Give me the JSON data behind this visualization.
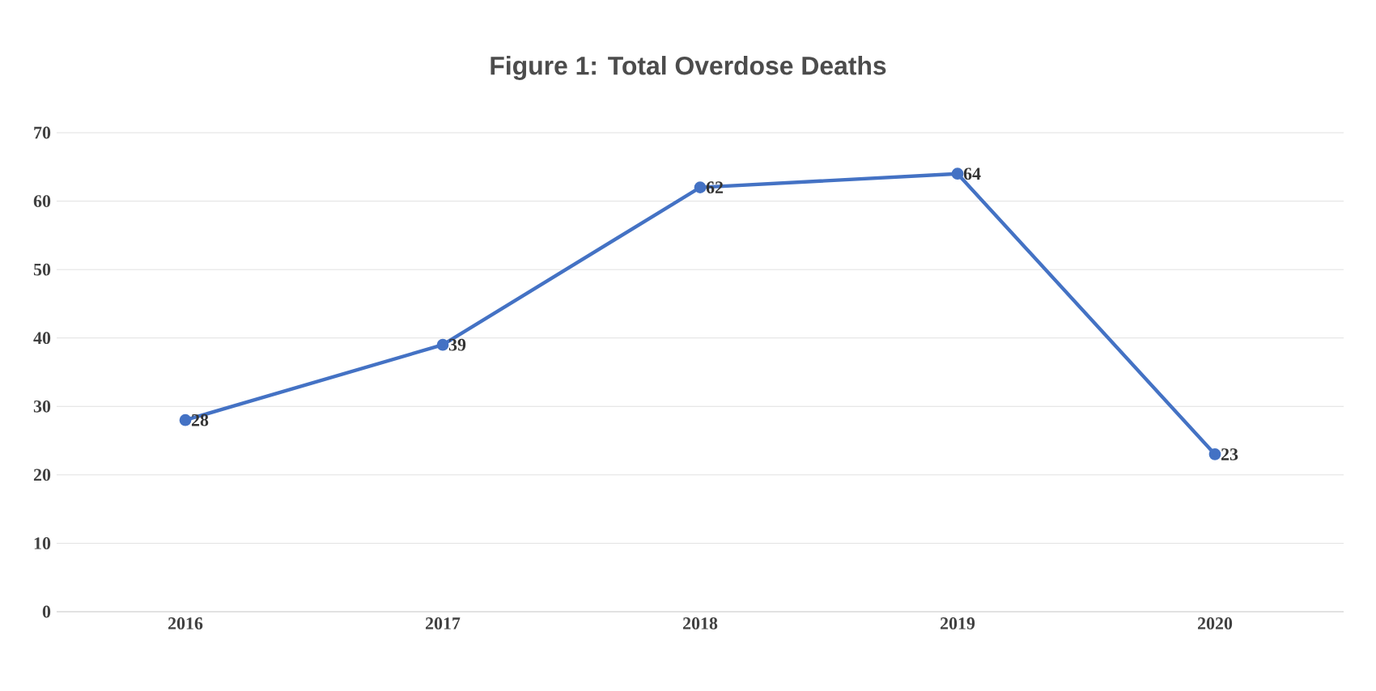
{
  "chart_data": {
    "type": "line",
    "title": "Figure 1: Total Overdose Deaths",
    "categories": [
      "2016",
      "2017",
      "2018",
      "2019",
      "2020"
    ],
    "values": [
      28,
      39,
      62,
      64,
      23
    ],
    "color": "#4472c4",
    "ylim": [
      0,
      70
    ],
    "yticks": [
      0,
      10,
      20,
      30,
      40,
      50,
      60,
      70
    ],
    "grid": "y",
    "marker": "circle",
    "line_style": "solid",
    "data_labels": true
  }
}
